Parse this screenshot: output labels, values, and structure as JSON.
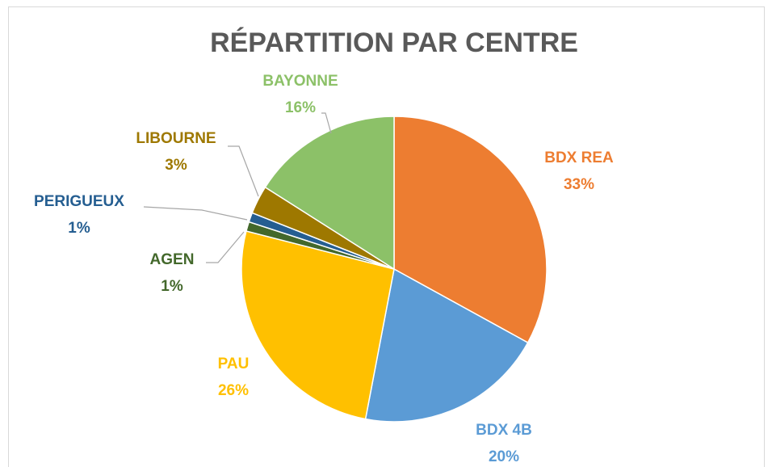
{
  "chart_data": {
    "type": "pie",
    "title": "RÉPARTITION PAR CENTRE",
    "categories": [
      "BDX REA",
      "BDX 4B",
      "PAU",
      "AGEN",
      "PERIGUEUX",
      "LIBOURNE",
      "BAYONNE"
    ],
    "values": [
      33,
      20,
      26,
      1,
      1,
      3,
      16
    ],
    "value_labels": [
      "33%",
      "20%",
      "26%",
      "1%",
      "1%",
      "3%",
      "16%"
    ],
    "colors": [
      "#ed7d31",
      "#5b9bd5",
      "#ffc000",
      "#43682b",
      "#255e91",
      "#9e7800",
      "#8cc168"
    ]
  }
}
